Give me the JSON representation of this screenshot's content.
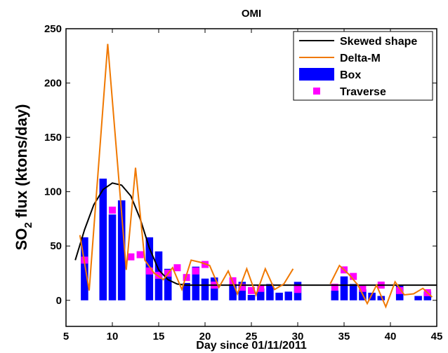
{
  "chart_data": {
    "type": "combo",
    "title": "OMI",
    "xlabel": "Day since 01/11/2011",
    "ylabel": [
      "SO",
      "2",
      " flux (ktons/day)"
    ],
    "xlim": [
      5,
      45
    ],
    "xticks": [
      5,
      10,
      15,
      20,
      25,
      30,
      35,
      40,
      45
    ],
    "ylim": [
      -24,
      250
    ],
    "yticks": [
      0,
      50,
      100,
      150,
      200,
      250
    ],
    "legend": "top-right",
    "series": [
      {
        "name": "Skewed shape",
        "type": "line",
        "color": "#000000",
        "x": [
          6,
          7,
          8,
          9,
          10,
          11,
          12,
          13,
          14,
          15,
          16,
          17,
          18,
          20,
          25,
          30,
          35,
          40,
          45
        ],
        "values": [
          37,
          65,
          88,
          102,
          108,
          106,
          96,
          75,
          48,
          28,
          19,
          15,
          14,
          14,
          14,
          14,
          14,
          14,
          14
        ]
      },
      {
        "name": "Delta-M",
        "type": "line",
        "color": "#f07800",
        "x": [
          6.5,
          7.5,
          9.5,
          11.5,
          12.5,
          13.5,
          14.5,
          15.5,
          16.5,
          17.5,
          18.5,
          19.5,
          20.5,
          21.5,
          22.5,
          23.5,
          24.5,
          25.5,
          26.5,
          27.5,
          28.5,
          29.5,
          31.5,
          33.5,
          34.5,
          35.5,
          36.5,
          37.5,
          38.5,
          39.5,
          40.5,
          41.5,
          42.5,
          43.5,
          44.5
        ],
        "values": [
          60,
          9,
          236,
          28,
          122,
          37,
          25,
          19,
          30,
          10,
          37,
          35,
          32,
          12,
          27,
          6,
          29,
          5,
          29,
          10,
          15,
          29,
          null,
          15,
          32,
          24,
          14,
          -3,
          14,
          -6,
          17,
          5,
          6,
          11,
          3
        ]
      },
      {
        "name": "Box",
        "type": "bar",
        "color": "#0000ff",
        "x": [
          7,
          9,
          10,
          11,
          14,
          15,
          16,
          18,
          19,
          20,
          21,
          23,
          24,
          25,
          26,
          27,
          28,
          29,
          30,
          34,
          35,
          36,
          37,
          38,
          39,
          41,
          43,
          44
        ],
        "values": [
          58,
          112,
          79,
          92,
          58,
          45,
          29,
          16,
          31,
          20,
          21,
          15,
          17,
          5,
          11,
          15,
          7,
          8,
          17,
          9,
          22,
          15,
          10,
          7,
          4,
          14,
          4,
          8
        ]
      },
      {
        "name": "Traverse",
        "type": "scatter",
        "color": "#ff00ff",
        "x": [
          7,
          10,
          12,
          13,
          14,
          15,
          16,
          17,
          18,
          19,
          20,
          21,
          23,
          24,
          25,
          26,
          30,
          34,
          35,
          36,
          37,
          39,
          41,
          44
        ],
        "values": [
          37,
          83,
          40,
          42,
          27,
          23,
          25,
          30,
          21,
          27,
          33,
          14,
          18,
          12,
          9,
          11,
          10,
          12,
          28,
          22,
          11,
          14,
          9,
          7
        ]
      }
    ]
  }
}
